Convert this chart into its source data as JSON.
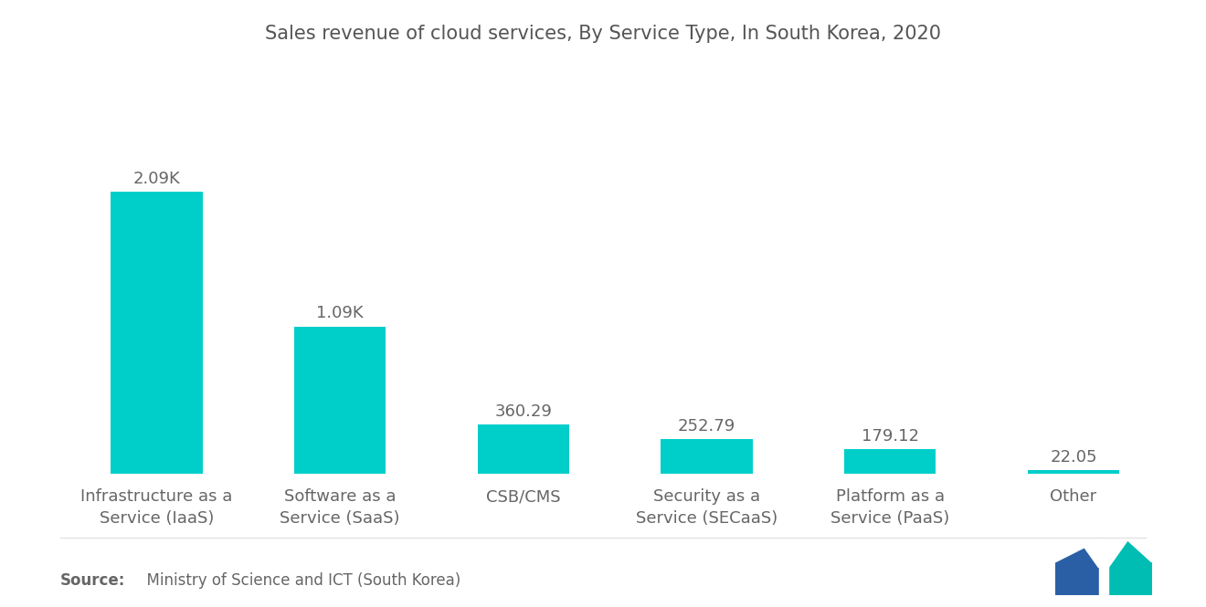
{
  "title": "Sales revenue of cloud services, By Service Type, In South Korea, 2020",
  "categories": [
    "Infrastructure as a\nService (IaaS)",
    "Software as a\nService (SaaS)",
    "CSB/CMS",
    "Security as a\nService (SECaaS)",
    "Platform as a\nService (PaaS)",
    "Other"
  ],
  "values": [
    2090,
    1090,
    360.29,
    252.79,
    179.12,
    22.05
  ],
  "labels": [
    "2.09K",
    "1.09K",
    "360.29",
    "252.79",
    "179.12",
    "22.05"
  ],
  "bar_color": "#00CEC9",
  "background_color": "#ffffff",
  "title_fontsize": 15,
  "label_fontsize": 13,
  "tick_fontsize": 13,
  "source_fontsize": 12,
  "ylim": [
    0,
    2700
  ]
}
